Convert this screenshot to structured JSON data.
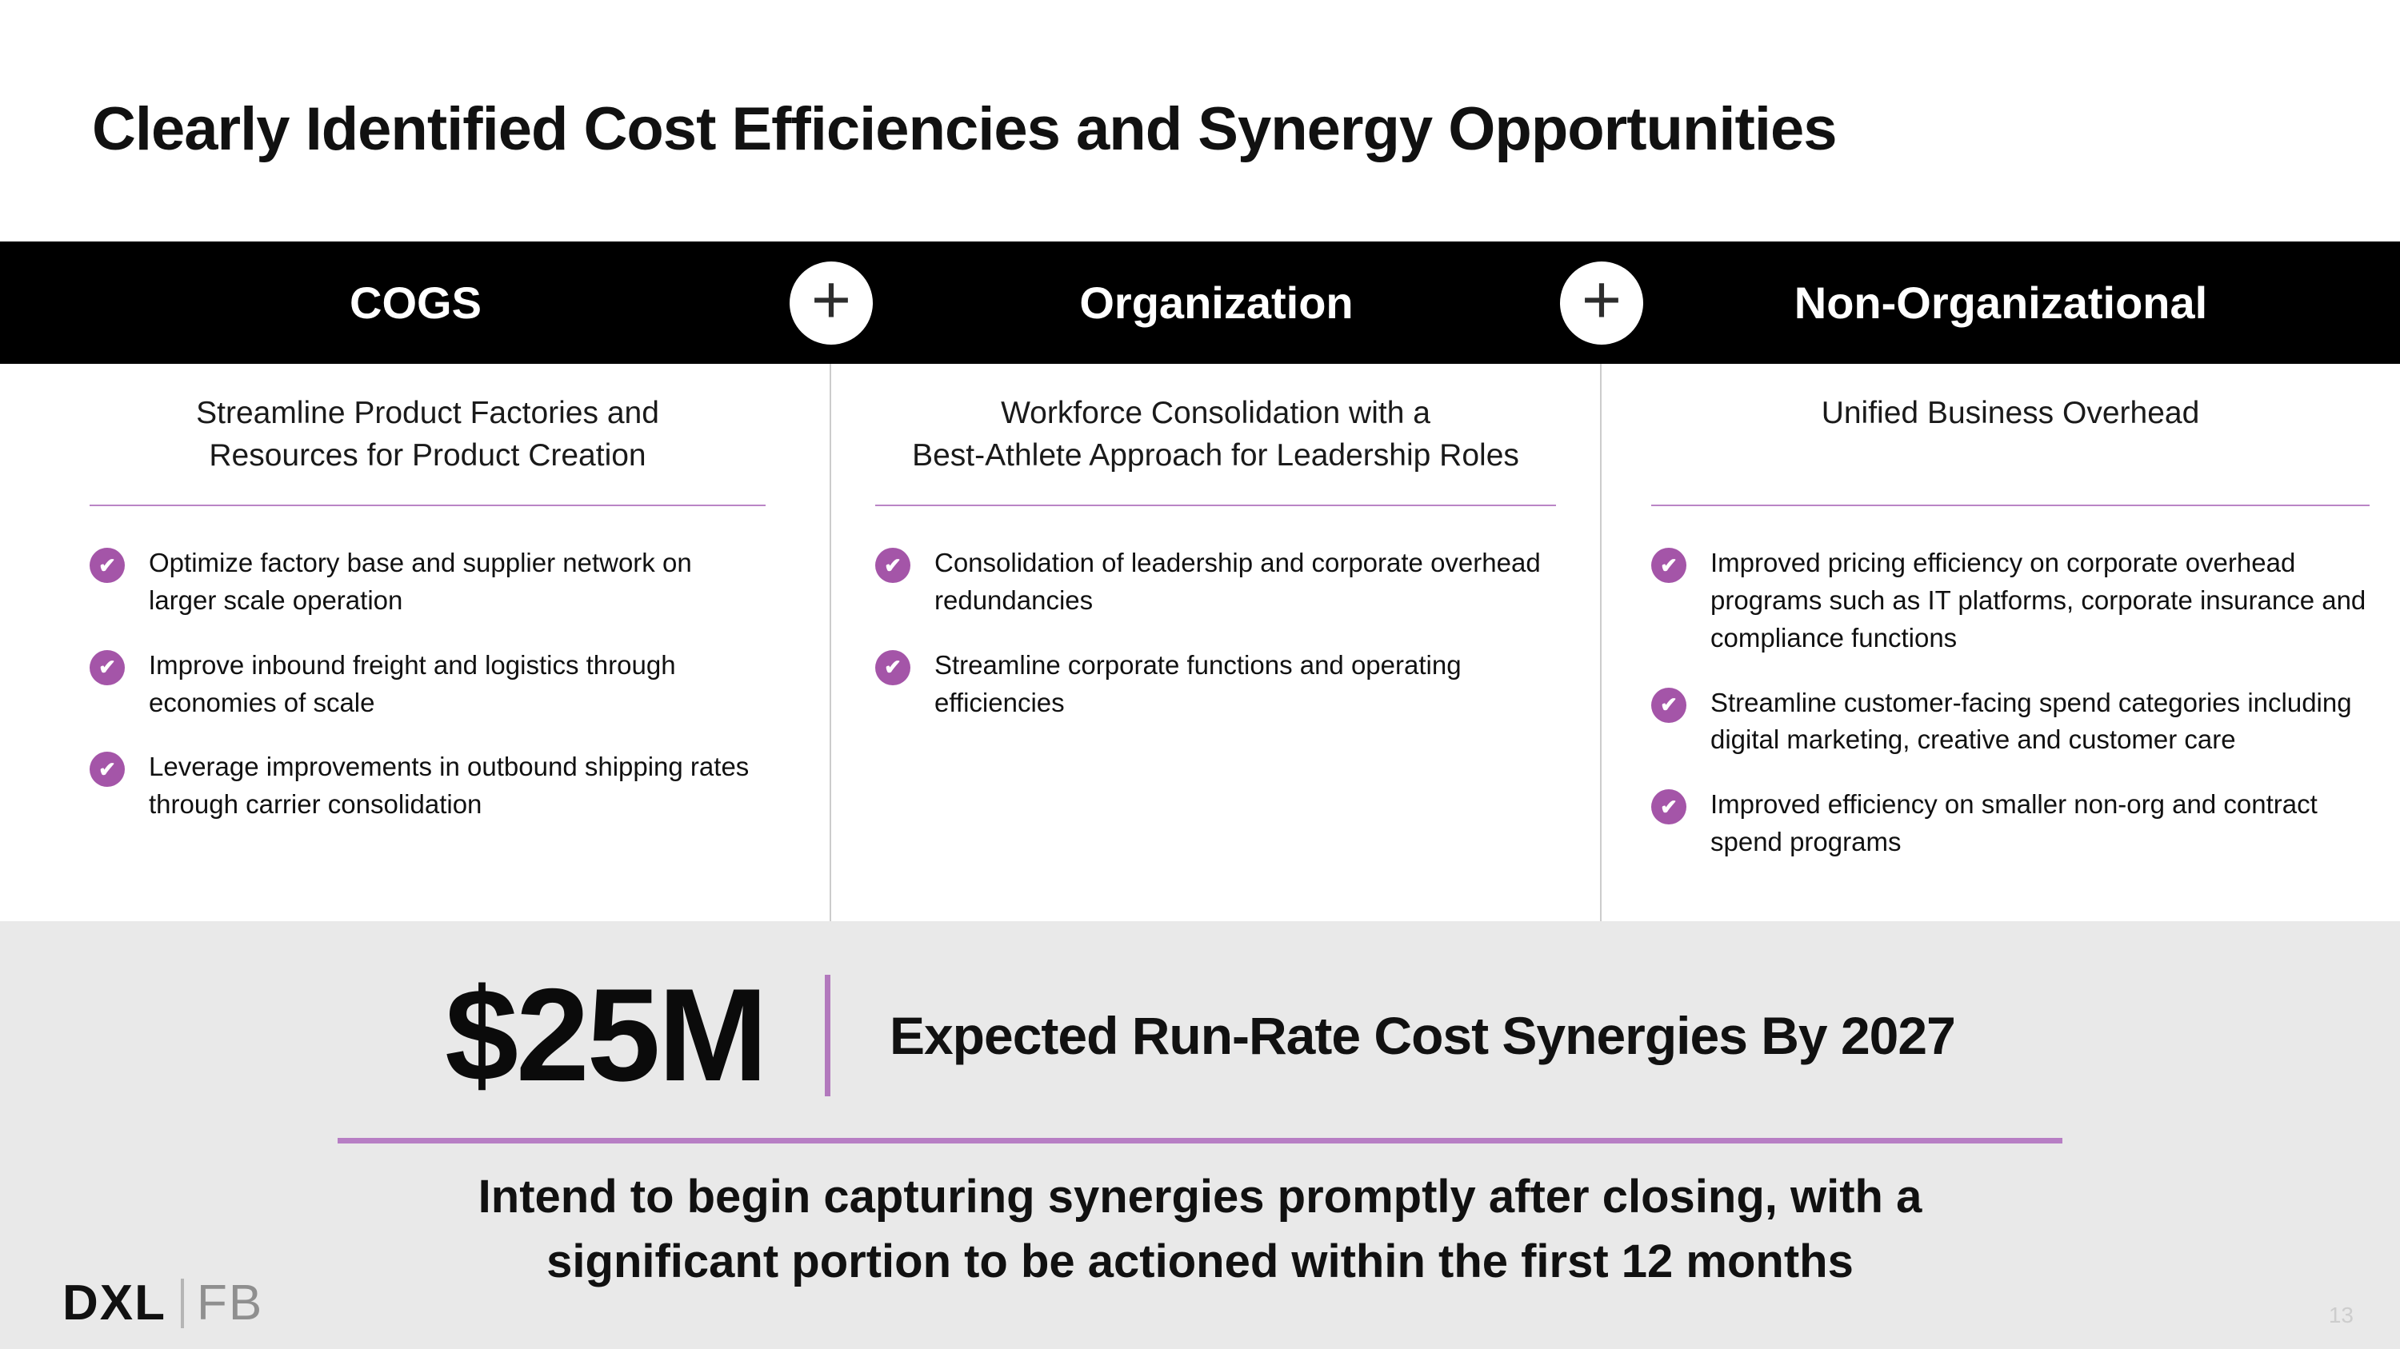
{
  "slide": {
    "title": "Clearly Identified Cost Efficiencies and Synergy Opportunities",
    "page_number": "13"
  },
  "icons": {
    "plus": "+",
    "check": "✔"
  },
  "columns": [
    {
      "header": "COGS",
      "subtitle": "Streamline Product Factories and\nResources for Product Creation",
      "bullets": [
        "Optimize factory base and supplier network on larger scale operation",
        "Improve inbound freight and logistics through economies of scale",
        "Leverage improvements in outbound shipping rates through carrier consolidation"
      ]
    },
    {
      "header": "Organization",
      "subtitle": "Workforce Consolidation with a\nBest-Athlete Approach for Leadership Roles",
      "bullets": [
        "Consolidation of leadership and corporate overhead redundancies",
        "Streamline corporate functions and operating efficiencies"
      ]
    },
    {
      "header": "Non-Organizational",
      "subtitle": "Unified Business Overhead",
      "bullets": [
        "Improved pricing efficiency on corporate overhead programs such as IT platforms, corporate insurance and compliance functions",
        "Streamline customer-facing spend categories including digital marketing, creative and customer care",
        "Improved efficiency on smaller non-org and contract spend programs"
      ]
    }
  ],
  "footer": {
    "amount": "$25M",
    "caption": "Expected Run-Rate Cost Synergies By 2027",
    "note": "Intend to begin capturing synergies promptly after closing, with a\nsignificant portion to be actioned within the first 12 months",
    "logo_left": "DXL",
    "logo_right": "FB"
  },
  "colors": {
    "accent_purple": "#A455A8",
    "divider_purple": "#B77EC4",
    "band_black": "#000000",
    "footer_bg": "#E9E9E9"
  }
}
